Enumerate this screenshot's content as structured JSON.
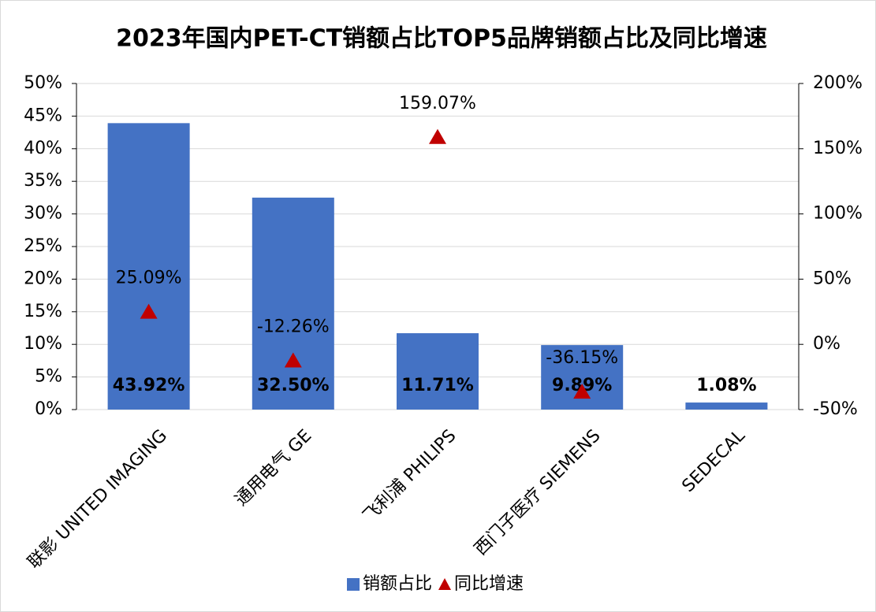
{
  "chart_data": {
    "type": "bar",
    "title": "2023年国内PET-CT销额占比TOP5品牌销额占比及同比增速",
    "categories": [
      "联影 UNITED IMAGING",
      "通用电气 GE",
      "飞利浦 PHILIPS",
      "西门子医疗 SIEMENS",
      "SEDECAL"
    ],
    "series": [
      {
        "name": "销额占比",
        "type": "bar",
        "color": "#4472c4",
        "values": [
          43.92,
          32.5,
          11.71,
          9.89,
          1.08
        ],
        "value_labels": [
          "43.92%",
          "32.50%",
          "11.71%",
          "9.89%",
          "1.08%"
        ]
      },
      {
        "name": "同比增速",
        "type": "scatter",
        "axis": "y2",
        "color": "#c00000",
        "values": [
          25.09,
          -12.26,
          159.07,
          -36.15,
          null
        ],
        "value_labels": [
          "25.09%",
          "-12.26%",
          "159.07%",
          "-36.15%",
          null
        ]
      }
    ],
    "ylim": [
      0,
      50
    ],
    "yticks": [
      {
        "value": 0,
        "label": "0%"
      },
      {
        "value": 5,
        "label": "5%"
      },
      {
        "value": 10,
        "label": "10%"
      },
      {
        "value": 15,
        "label": "15%"
      },
      {
        "value": 20,
        "label": "20%"
      },
      {
        "value": 25,
        "label": "25%"
      },
      {
        "value": 30,
        "label": "30%"
      },
      {
        "value": 35,
        "label": "35%"
      },
      {
        "value": 40,
        "label": "40%"
      },
      {
        "value": 45,
        "label": "45%"
      },
      {
        "value": 50,
        "label": "50%"
      }
    ],
    "y2lim": [
      -50,
      200
    ],
    "y2ticks": [
      {
        "value": -50,
        "label": "-50%"
      },
      {
        "value": 0,
        "label": "0%"
      },
      {
        "value": 50,
        "label": "50%"
      },
      {
        "value": 100,
        "label": "100%"
      },
      {
        "value": 150,
        "label": "150%"
      },
      {
        "value": 200,
        "label": "200%"
      }
    ],
    "grid": true,
    "legend": "bottom"
  }
}
